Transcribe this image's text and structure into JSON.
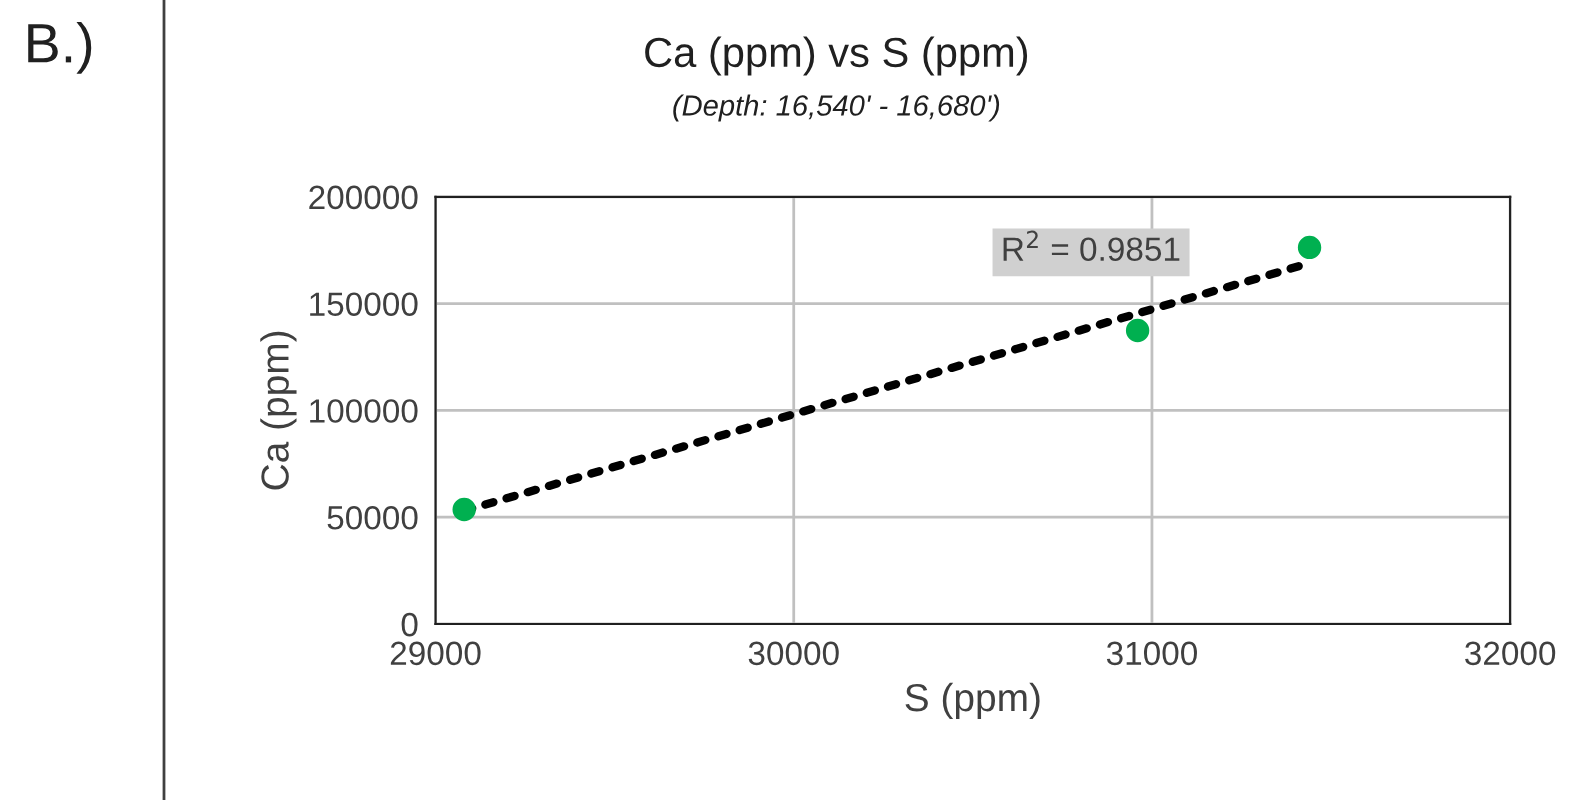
{
  "chart_data": {
    "type": "scatter",
    "title": "Ca (ppm) vs S (ppm)",
    "subtitle": "(Depth: 16,540' - 16,680')",
    "xlabel": "S (ppm)",
    "ylabel": "Ca (ppm)",
    "annotations": [
      "B.)",
      "R$^{2}$ = 0.9851"
    ],
    "x": [
      29080,
      30960,
      31440
    ],
    "series": [
      {
        "color": "#00b050",
        "values": [
          53600,
          137400,
          176300
        ],
        "marker": "circle"
      },
      {
        "type": "line",
        "color": "#000000",
        "x": [
          29080,
          31440
        ],
        "values": [
          53000,
          169000
        ],
        "line_style": "dotted",
        "marker": "none"
      }
    ],
    "xlim": [
      29000,
      32000
    ],
    "xticks": [
      29000,
      30000,
      31000,
      32000
    ],
    "ylim": [
      0,
      200000
    ],
    "yticks": [
      0,
      50000,
      100000,
      150000,
      200000
    ],
    "grid": true,
    "legend": false
  }
}
